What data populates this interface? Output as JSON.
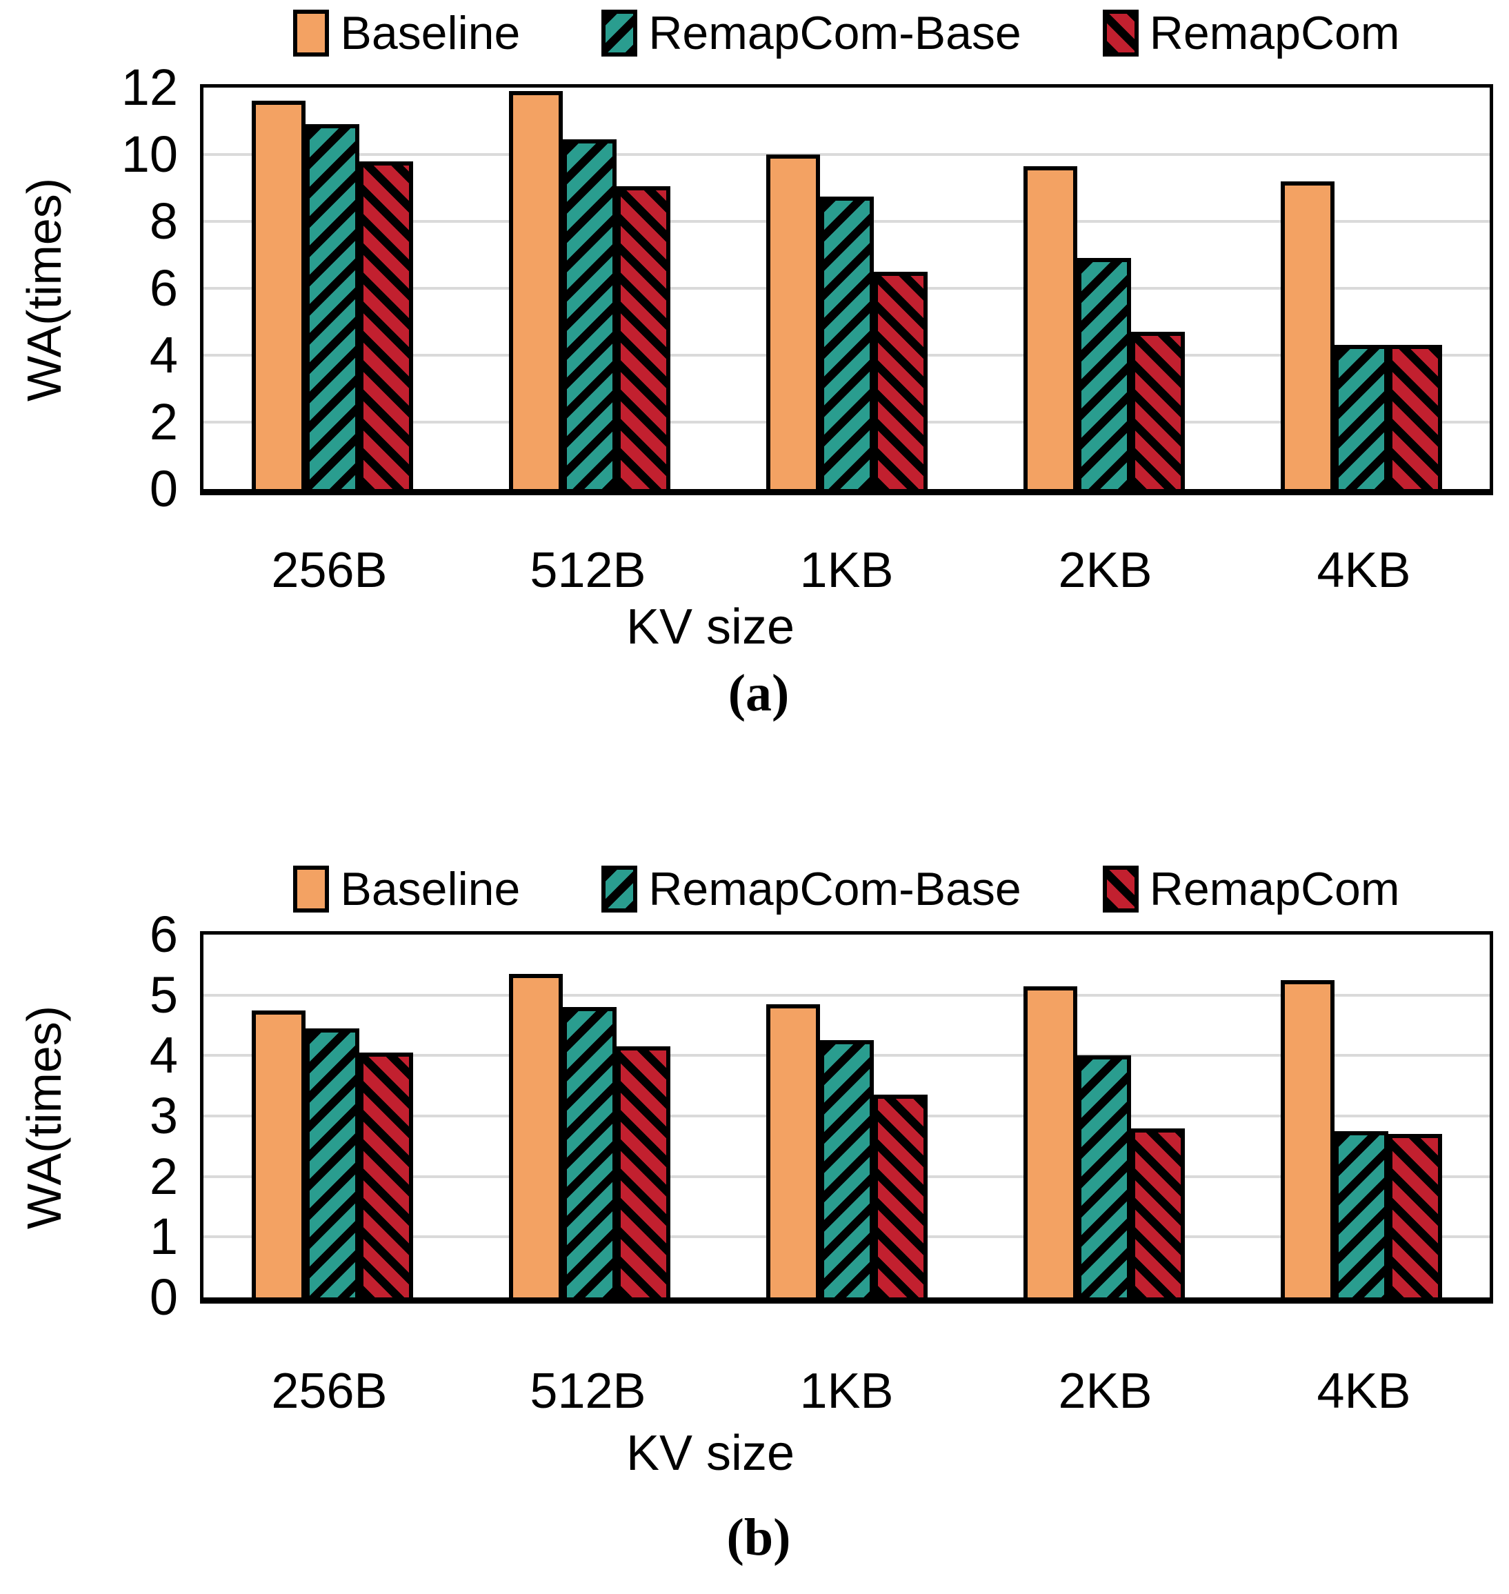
{
  "figure": {
    "background": "#ffffff",
    "gridline_color": "#DADADA",
    "bar_border_color": "#000000"
  },
  "chart_data": [
    {
      "id": "a",
      "type": "bar",
      "caption": "(a)",
      "xlabel": "KV size",
      "ylabel": "WA(times)",
      "ylim": [
        0,
        12
      ],
      "yticks": [
        0,
        2,
        4,
        6,
        8,
        10,
        12
      ],
      "grid": true,
      "legend_position": "top",
      "categories": [
        "256B",
        "512B",
        "1KB",
        "2KB",
        "4KB"
      ],
      "series": [
        {
          "name": "Baseline",
          "color": "#F3A263",
          "hatch": "none",
          "values": [
            11.6,
            11.9,
            10.0,
            9.65,
            9.2
          ]
        },
        {
          "name": "RemapCom-Base",
          "color": "#2A9D8F",
          "hatch": "forward",
          "values": [
            10.9,
            10.45,
            8.75,
            6.9,
            4.3
          ]
        },
        {
          "name": "RemapCom",
          "color": "#C2202F",
          "hatch": "backward",
          "values": [
            9.8,
            9.05,
            6.5,
            4.7,
            4.3
          ]
        }
      ]
    },
    {
      "id": "b",
      "type": "bar",
      "caption": "(b)",
      "xlabel": "KV size",
      "ylabel": "WA(times)",
      "ylim": [
        0,
        6
      ],
      "yticks": [
        0,
        1,
        2,
        3,
        4,
        5,
        6
      ],
      "grid": true,
      "legend_position": "top",
      "categories": [
        "256B",
        "512B",
        "1KB",
        "2KB",
        "4KB"
      ],
      "series": [
        {
          "name": "Baseline",
          "color": "#F3A263",
          "hatch": "none",
          "values": [
            4.75,
            5.35,
            4.85,
            5.15,
            5.25
          ]
        },
        {
          "name": "RemapCom-Base",
          "color": "#2A9D8F",
          "hatch": "forward",
          "values": [
            4.45,
            4.8,
            4.25,
            4.0,
            2.75
          ]
        },
        {
          "name": "RemapCom",
          "color": "#C2202F",
          "hatch": "backward",
          "values": [
            4.05,
            4.15,
            3.35,
            2.8,
            2.7
          ]
        }
      ]
    }
  ]
}
